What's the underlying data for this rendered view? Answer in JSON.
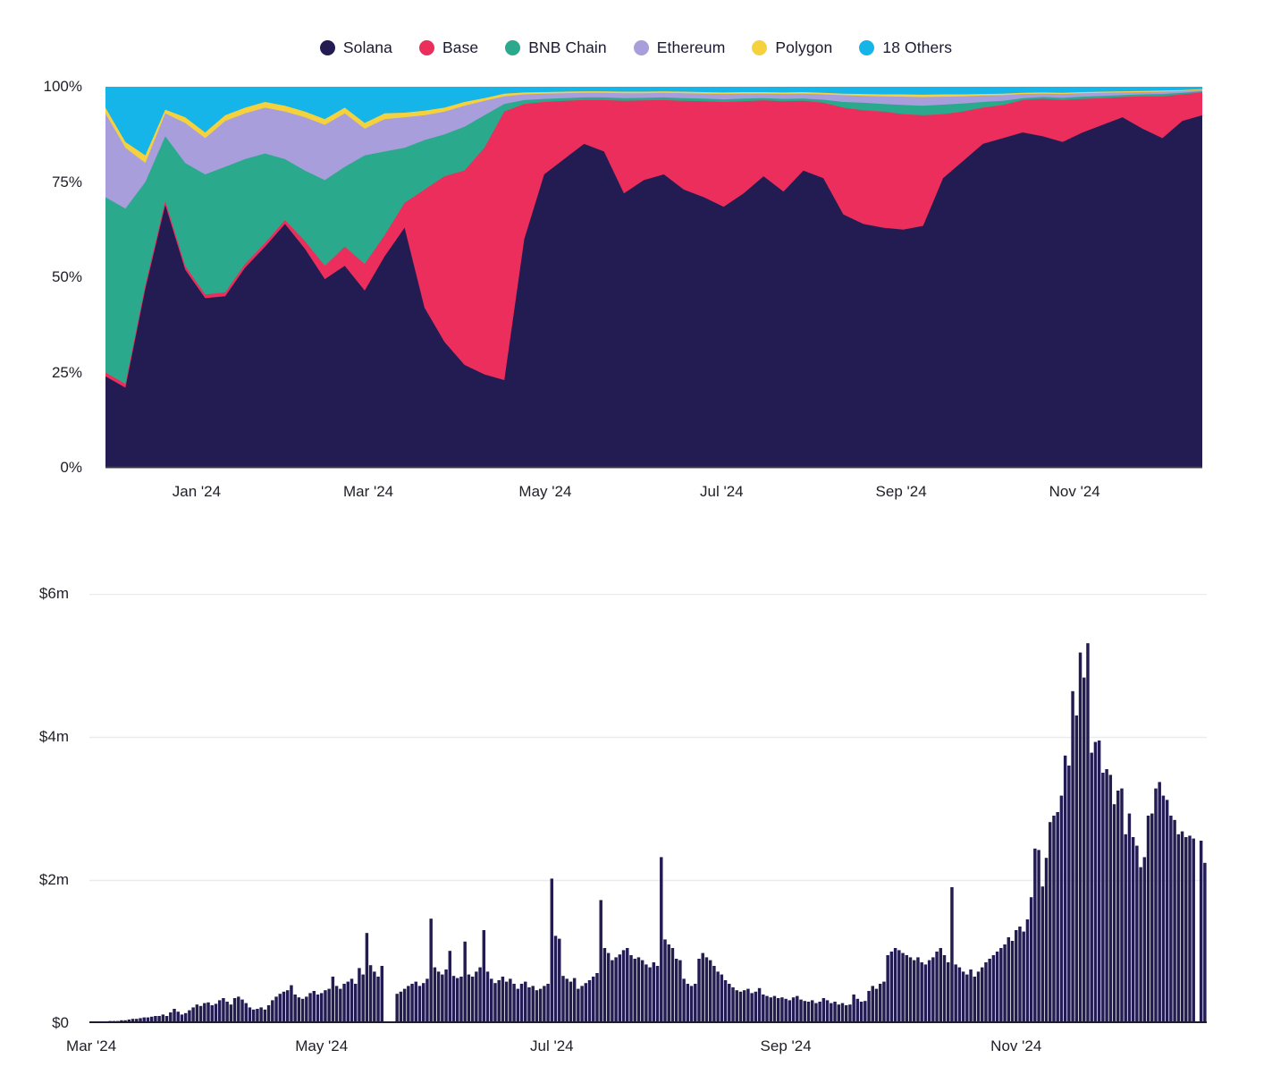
{
  "chart_data": [
    {
      "type": "area",
      "stacked_percent": true,
      "interval": "weekly",
      "x_range": [
        "Dec '23",
        "Dec '24"
      ],
      "ylim": [
        0,
        100
      ],
      "grid": false,
      "legend_position": "top-center",
      "y_ticks": [
        "100%",
        "75%",
        "50%",
        "25%",
        "0%"
      ],
      "x_ticks": [
        {
          "label": "Jan '24",
          "week": 4.57
        },
        {
          "label": "Mar '24",
          "week": 13.18
        },
        {
          "label": "May '24",
          "week": 22.05
        },
        {
          "label": "Jul '24",
          "week": 30.9
        },
        {
          "label": "Sep '24",
          "week": 39.9
        },
        {
          "label": "Nov '24",
          "week": 48.6
        }
      ],
      "series": [
        {
          "name": "Solana",
          "color": "#231C52",
          "values": [
            24,
            21,
            47,
            69,
            52,
            44.5,
            45,
            52.5,
            58,
            64,
            57.5,
            49.5,
            53,
            46.5,
            55.5,
            63,
            42,
            33,
            27,
            24.5,
            23,
            60,
            77,
            81,
            85,
            83,
            72,
            75.5,
            77,
            73,
            71,
            68.5,
            72,
            76.5,
            72.5,
            78,
            76,
            66.5,
            64,
            63,
            62.5,
            63.5,
            76,
            80.5,
            85,
            86.5,
            88,
            87,
            85.5,
            88,
            90,
            92,
            89,
            86.5,
            91,
            92.5
          ]
        },
        {
          "name": "Base",
          "color": "#EB2E5B",
          "values": [
            1,
            1,
            1,
            1,
            1,
            1,
            1,
            1,
            1,
            1,
            2,
            3.5,
            5,
            7,
            5.5,
            6.5,
            31,
            43.5,
            51,
            59.5,
            70.5,
            35.5,
            19,
            15.3,
            11.5,
            13.5,
            24.3,
            20.9,
            19.5,
            23.3,
            25.2,
            27.5,
            24.2,
            19.9,
            23.7,
            18.3,
            19.8,
            28,
            29.8,
            30.5,
            30.3,
            29,
            16.8,
            13,
            9.5,
            8.7,
            8.5,
            9.8,
            11,
            8.8,
            7,
            5.3,
            8.5,
            11,
            7,
            6
          ]
        },
        {
          "name": "BNB Chain",
          "color": "#2BA98D",
          "values": [
            46,
            46,
            27,
            17,
            27,
            31.5,
            33,
            27.5,
            23.5,
            16,
            18.5,
            22.5,
            21,
            28.5,
            22,
            14.5,
            13,
            11,
            11.5,
            8.5,
            2,
            1,
            0.8,
            0.7,
            0.7,
            0.7,
            0.7,
            0.7,
            0.7,
            0.7,
            0.7,
            0.7,
            0.7,
            0.6,
            0.6,
            0.6,
            0.8,
            1.5,
            2,
            2,
            2.4,
            2.5,
            2.5,
            2.1,
            1.5,
            1.1,
            0.5,
            0.5,
            0.6,
            0.6,
            0.6,
            0.5,
            0.5,
            0.6,
            0.4,
            0.3
          ]
        },
        {
          "name": "Ethereum",
          "color": "#A89EDC",
          "values": [
            22,
            16,
            5,
            6,
            10.5,
            9.5,
            12,
            12,
            12,
            12.5,
            14,
            14.5,
            14,
            7,
            8.5,
            8,
            6.5,
            6,
            5.5,
            3.8,
            2,
            1.5,
            1.4,
            1.3,
            1.2,
            1.2,
            1.3,
            1.2,
            1.2,
            1.3,
            1.3,
            1.4,
            1.3,
            1.2,
            1.3,
            1.3,
            1.4,
            1.8,
            1.8,
            2,
            2.2,
            2.3,
            2.1,
            1.9,
            1.7,
            1.5,
            1.1,
            0.9,
            1,
            0.9,
            0.8,
            0.7,
            0.6,
            0.6,
            0.5,
            0.4
          ]
        },
        {
          "name": "Polygon",
          "color": "#F5D23D",
          "values": [
            1.5,
            1.5,
            2,
            1,
            1.5,
            1.5,
            1.5,
            1.5,
            1.5,
            1.5,
            1.5,
            1.5,
            1.5,
            1.5,
            1.5,
            1.2,
            1.2,
            1,
            1,
            0.7,
            0.7,
            0.5,
            0.4,
            0.4,
            0.4,
            0.4,
            0.4,
            0.4,
            0.4,
            0.4,
            0.4,
            0.4,
            0.4,
            0.4,
            0.4,
            0.4,
            0.4,
            0.4,
            0.5,
            0.5,
            0.6,
            0.6,
            0.6,
            0.5,
            0.4,
            0.4,
            0.3,
            0.3,
            0.3,
            0.3,
            0.3,
            0.3,
            0.3,
            0.3,
            0.2,
            0.2
          ]
        },
        {
          "name": "18 Others",
          "color": "#15B4E9",
          "values": [
            5.5,
            14.5,
            18,
            6,
            8,
            12,
            7.5,
            5.5,
            4,
            5,
            6.5,
            8.5,
            5.5,
            9.5,
            7,
            6.8,
            6.3,
            5.5,
            4,
            3,
            1.8,
            1.5,
            1.4,
            1.3,
            1.2,
            1.2,
            1.3,
            1.3,
            1.2,
            1.3,
            1.4,
            1.5,
            1.4,
            1.4,
            1.5,
            1.4,
            1.6,
            1.8,
            1.9,
            2,
            2,
            2.1,
            2,
            2,
            1.9,
            1.8,
            1.6,
            1.5,
            1.6,
            1.4,
            1.3,
            1.2,
            1.1,
            1,
            0.9,
            0.6
          ]
        }
      ]
    },
    {
      "type": "bar",
      "unit": "$m",
      "interval": "daily",
      "start_date": "Mar 1 '24",
      "bar_color": "#231C52",
      "ylim": [
        0,
        6
      ],
      "grid": true,
      "y_ticks": [
        "$6m",
        "$4m",
        "$2m",
        "$0"
      ],
      "x_ticks": [
        {
          "label": "Mar '24",
          "index": 0
        },
        {
          "label": "May '24",
          "index": 61
        },
        {
          "label": "Jul '24",
          "index": 122
        },
        {
          "label": "Sep '24",
          "index": 184
        },
        {
          "label": "Nov '24",
          "index": 245
        }
      ],
      "values": [
        0.01,
        0.01,
        0.02,
        0.02,
        0.02,
        0.03,
        0.03,
        0.03,
        0.04,
        0.04,
        0.05,
        0.06,
        0.06,
        0.07,
        0.08,
        0.08,
        0.09,
        0.1,
        0.1,
        0.12,
        0.1,
        0.15,
        0.2,
        0.16,
        0.12,
        0.14,
        0.18,
        0.22,
        0.26,
        0.24,
        0.28,
        0.29,
        0.25,
        0.27,
        0.32,
        0.35,
        0.3,
        0.26,
        0.35,
        0.37,
        0.33,
        0.28,
        0.22,
        0.19,
        0.2,
        0.22,
        0.19,
        0.25,
        0.32,
        0.37,
        0.41,
        0.44,
        0.46,
        0.53,
        0.4,
        0.36,
        0.34,
        0.37,
        0.42,
        0.45,
        0.4,
        0.42,
        0.46,
        0.48,
        0.65,
        0.52,
        0.48,
        0.55,
        0.58,
        0.62,
        0.55,
        0.77,
        0.68,
        1.26,
        0.81,
        0.72,
        0.65,
        0.8,
        0,
        0,
        0,
        0.41,
        0.44,
        0.48,
        0.52,
        0.55,
        0.58,
        0.52,
        0.56,
        0.62,
        1.46,
        0.78,
        0.72,
        0.68,
        0.75,
        1.01,
        0.66,
        0.63,
        0.65,
        1.14,
        0.68,
        0.65,
        0.72,
        0.78,
        1.3,
        0.72,
        0.62,
        0.56,
        0.6,
        0.65,
        0.58,
        0.62,
        0.55,
        0.48,
        0.55,
        0.58,
        0.5,
        0.52,
        0.46,
        0.48,
        0.52,
        0.55,
        2.02,
        1.22,
        1.18,
        0.66,
        0.62,
        0.58,
        0.63,
        0.48,
        0.52,
        0.56,
        0.6,
        0.65,
        0.7,
        1.72,
        1.05,
        0.98,
        0.88,
        0.92,
        0.96,
        1.02,
        1.05,
        0.95,
        0.9,
        0.92,
        0.88,
        0.82,
        0.78,
        0.85,
        0.8,
        2.32,
        1.17,
        1.1,
        1.05,
        0.9,
        0.88,
        0.62,
        0.55,
        0.52,
        0.55,
        0.9,
        0.98,
        0.92,
        0.88,
        0.8,
        0.72,
        0.68,
        0.6,
        0.55,
        0.5,
        0.46,
        0.44,
        0.46,
        0.48,
        0.42,
        0.44,
        0.49,
        0.4,
        0.38,
        0.36,
        0.38,
        0.35,
        0.36,
        0.34,
        0.32,
        0.36,
        0.38,
        0.33,
        0.31,
        0.3,
        0.32,
        0.28,
        0.3,
        0.35,
        0.32,
        0.28,
        0.3,
        0.26,
        0.28,
        0.25,
        0.26,
        0.4,
        0.34,
        0.3,
        0.31,
        0.45,
        0.52,
        0.48,
        0.55,
        0.58,
        0.95,
        1.0,
        1.05,
        1.02,
        0.98,
        0.95,
        0.92,
        0.88,
        0.92,
        0.85,
        0.82,
        0.88,
        0.92,
        1.0,
        1.05,
        0.95,
        0.85,
        1.9,
        0.82,
        0.78,
        0.72,
        0.68,
        0.75,
        0.65,
        0.72,
        0.78,
        0.85,
        0.9,
        0.95,
        1.0,
        1.05,
        1.1,
        1.2,
        1.15,
        1.3,
        1.35,
        1.28,
        1.45,
        1.76,
        2.44,
        2.42,
        1.91,
        2.31,
        2.81,
        2.9,
        2.95,
        3.18,
        3.74,
        3.6,
        4.64,
        4.3,
        5.18,
        4.83,
        5.31,
        3.78,
        3.93,
        3.95,
        3.5,
        3.55,
        3.47,
        3.06,
        3.25,
        3.28,
        2.64,
        2.93,
        2.6,
        2.48,
        2.18,
        2.32,
        2.9,
        2.93,
        3.28,
        3.37,
        3.18,
        3.12,
        2.9,
        2.84,
        2.64,
        2.68,
        2.6,
        2.62,
        2.58,
        0,
        2.55,
        2.24
      ]
    }
  ]
}
